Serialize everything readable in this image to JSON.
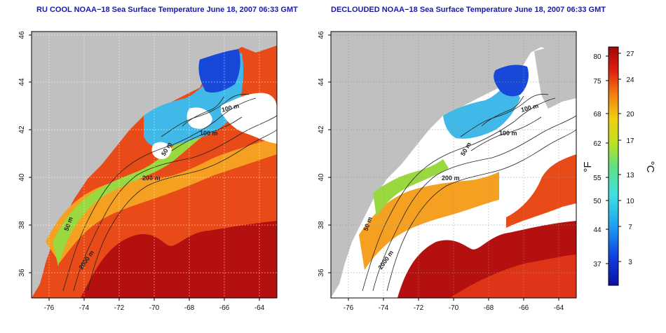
{
  "titles": {
    "left": "RU COOL NOAA−18 Sea Surface Temperature June 18, 2007 06:33 GMT",
    "right": "DECLOUDED NOAA−18 Sea Surface Temperature June 18, 2007 06:33 GMT"
  },
  "axes": {
    "lon_ticks": [
      "-76",
      "-74",
      "-72",
      "-70",
      "-68",
      "-66",
      "-64"
    ],
    "lat_ticks": [
      "36",
      "38",
      "40",
      "42",
      "44",
      "46"
    ]
  },
  "contour_labels": [
    "100 m",
    "100 m",
    "50 m",
    "200 m",
    "50 m",
    "2000 m"
  ],
  "colorbar": {
    "fahrenheit_label": "°F",
    "celsius_label": "°C",
    "fahrenheit_ticks": [
      "80",
      "75",
      "68",
      "62",
      "55",
      "50",
      "44",
      "37"
    ],
    "celsius_ticks": [
      "27",
      "24",
      "20",
      "17",
      "13",
      "10",
      "7",
      "3"
    ]
  },
  "colors": {
    "title": "#1a1aa8",
    "land": "#c0c0c0",
    "cloud": "#ffffff",
    "warm": "#d42a10",
    "hot": "#b50e0e",
    "mid": "#f0a020",
    "cool": "#40b0e0",
    "cold": "#1040d0"
  }
}
